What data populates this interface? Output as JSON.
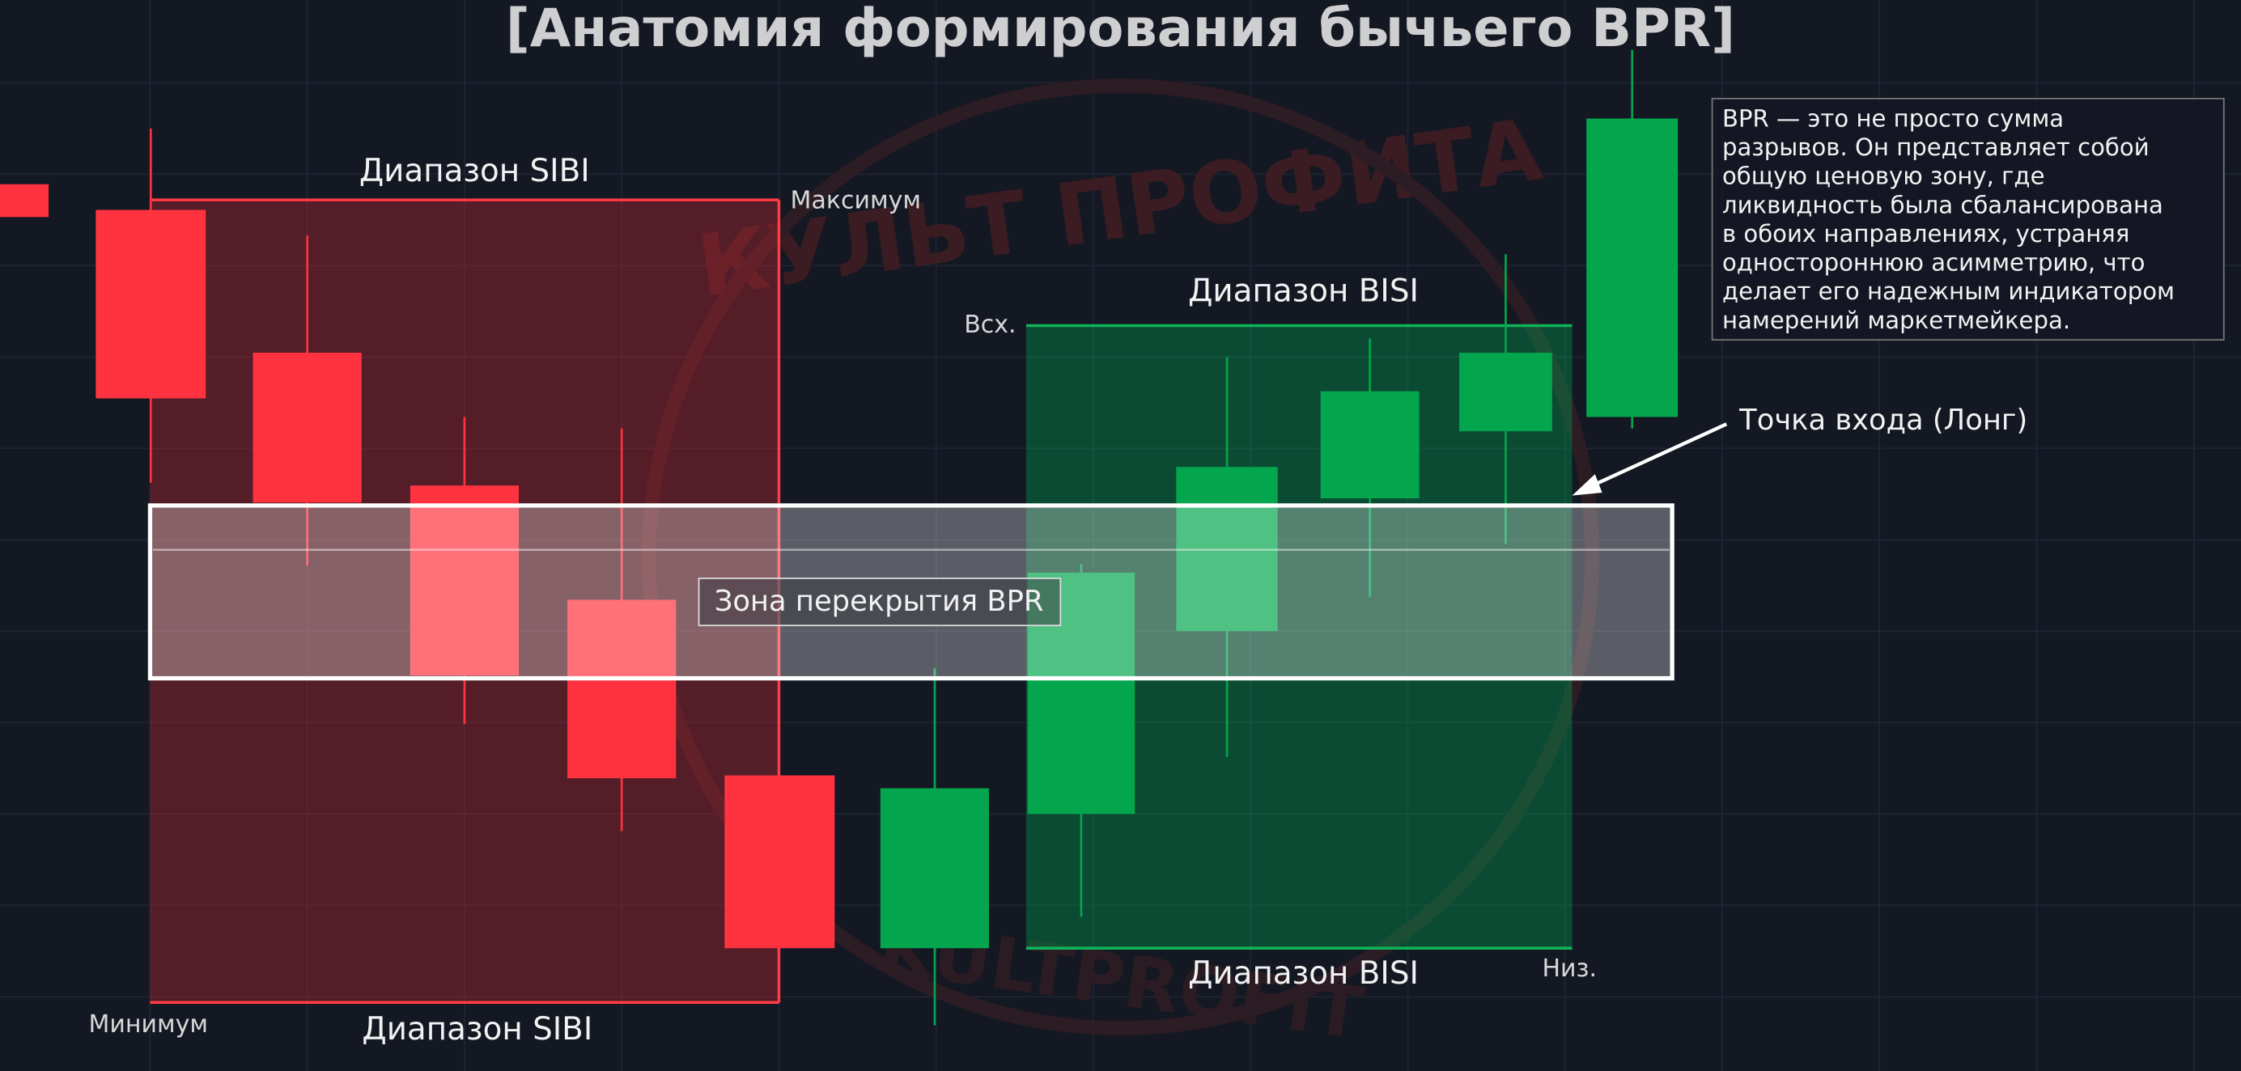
{
  "header": {
    "title": "[Анатомия формирования бычьего BPR]"
  },
  "watermark": {
    "top": "КУЛЬТ ПРОФИТА",
    "bottom": "KULTPROFIT"
  },
  "sibi": {
    "label_top": "Диапазон SIBI",
    "label_bottom": "Диапазон SIBI",
    "high": "Максимум",
    "low": "Минимум"
  },
  "bisi": {
    "label_top": "Диапазон BISI",
    "label_bottom": "Диапазон BISI",
    "high": "Всх.",
    "low": "Низ."
  },
  "zone": {
    "label": "Зона перекрытия BPR"
  },
  "entry": {
    "label": "Точка входа (Лонг)"
  },
  "info_box": {
    "lines": [
      "BPR — это не просто сумма",
      "разрывов. Он представляет собой",
      "общую ценовую зону, где",
      "ликвидность была сбалансирована",
      "в обоих направлениях, устраняя",
      "одностороннюю асимметрию, что",
      "делает его надежным индикатором",
      "намерений маркетмейкера."
    ]
  }
}
